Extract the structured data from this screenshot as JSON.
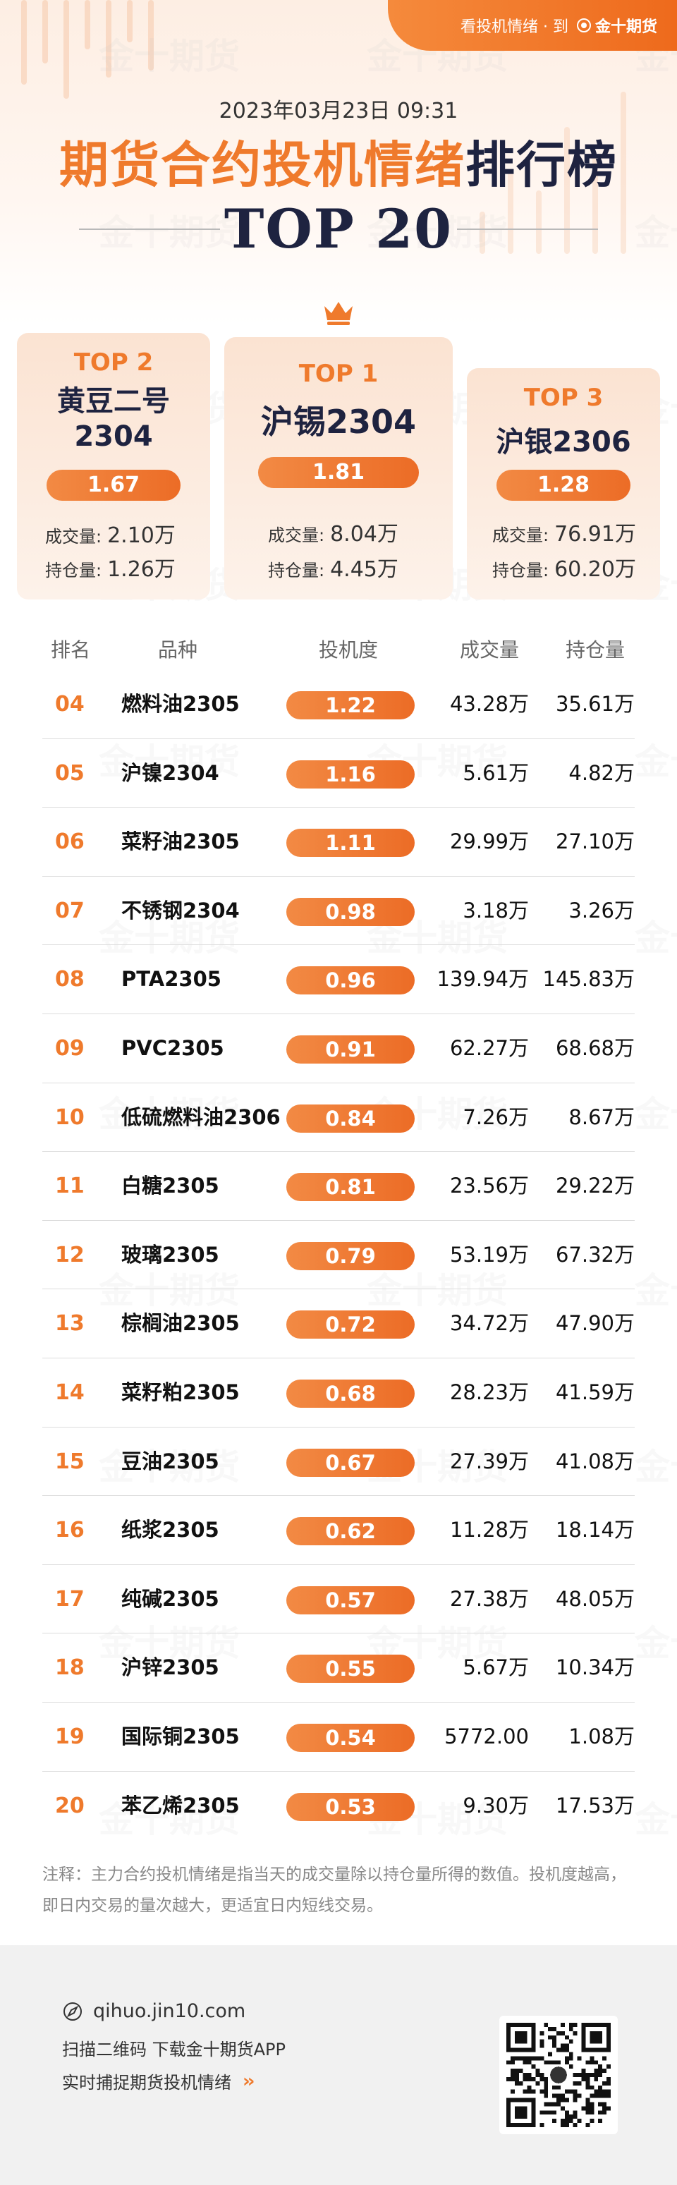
{
  "header": {
    "tag_text": "看投机情绪 · 到",
    "brand": "金十期货",
    "datetime": "2023年03月23日 09:31",
    "title_orange": "期货合约投机情绪",
    "title_dark": "排行榜",
    "subtitle": "TOP 20"
  },
  "podium": {
    "first": {
      "rank": "TOP 1",
      "name": "沪锡2304",
      "score": "1.81",
      "vol_label": "成交量:",
      "vol": "8.04万",
      "pos_label": "持仓量:",
      "pos": "4.45万"
    },
    "second": {
      "rank": "TOP 2",
      "name_line1": "黄豆二号",
      "name_line2": "2304",
      "score": "1.67",
      "vol_label": "成交量:",
      "vol": "2.10万",
      "pos_label": "持仓量:",
      "pos": "1.26万"
    },
    "third": {
      "rank": "TOP 3",
      "name": "沪银2306",
      "score": "1.28",
      "vol_label": "成交量:",
      "vol": "76.91万",
      "pos_label": "持仓量:",
      "pos": "60.20万"
    }
  },
  "table": {
    "headers": {
      "rank": "排名",
      "name": "品种",
      "score": "投机度",
      "volume": "成交量",
      "position": "持仓量"
    },
    "rows": [
      {
        "rank": "04",
        "name": "燃料油2305",
        "score": "1.22",
        "volume": "43.28万",
        "position": "35.61万"
      },
      {
        "rank": "05",
        "name": "沪镍2304",
        "score": "1.16",
        "volume": "5.61万",
        "position": "4.82万"
      },
      {
        "rank": "06",
        "name": "菜籽油2305",
        "score": "1.11",
        "volume": "29.99万",
        "position": "27.10万"
      },
      {
        "rank": "07",
        "name": "不锈钢2304",
        "score": "0.98",
        "volume": "3.18万",
        "position": "3.26万"
      },
      {
        "rank": "08",
        "name": "PTA2305",
        "score": "0.96",
        "volume": "139.94万",
        "position": "145.83万"
      },
      {
        "rank": "09",
        "name": "PVC2305",
        "score": "0.91",
        "volume": "62.27万",
        "position": "68.68万"
      },
      {
        "rank": "10",
        "name": "低硫燃料油2306",
        "score": "0.84",
        "volume": "7.26万",
        "position": "8.67万"
      },
      {
        "rank": "11",
        "name": "白糖2305",
        "score": "0.81",
        "volume": "23.56万",
        "position": "29.22万"
      },
      {
        "rank": "12",
        "name": "玻璃2305",
        "score": "0.79",
        "volume": "53.19万",
        "position": "67.32万"
      },
      {
        "rank": "13",
        "name": "棕榈油2305",
        "score": "0.72",
        "volume": "34.72万",
        "position": "47.90万"
      },
      {
        "rank": "14",
        "name": "菜籽粕2305",
        "score": "0.68",
        "volume": "28.23万",
        "position": "41.59万"
      },
      {
        "rank": "15",
        "name": "豆油2305",
        "score": "0.67",
        "volume": "27.39万",
        "position": "41.08万"
      },
      {
        "rank": "16",
        "name": "纸浆2305",
        "score": "0.62",
        "volume": "11.28万",
        "position": "18.14万"
      },
      {
        "rank": "17",
        "name": "纯碱2305",
        "score": "0.57",
        "volume": "27.38万",
        "position": "48.05万"
      },
      {
        "rank": "18",
        "name": "沪锌2305",
        "score": "0.55",
        "volume": "5.67万",
        "position": "10.34万"
      },
      {
        "rank": "19",
        "name": "国际铜2305",
        "score": "0.54",
        "volume": "5772.00",
        "position": "1.08万"
      },
      {
        "rank": "20",
        "name": "苯乙烯2305",
        "score": "0.53",
        "volume": "9.30万",
        "position": "17.53万"
      }
    ]
  },
  "note": "注释：主力合约投机情绪是指当天的成交量除以持仓量所得的数值。投机度越高，即日内交易的量次越大，更适宜日内短线交易。",
  "footer": {
    "site": "qihuo.jin10.com",
    "scan_text": "扫描二维码 下载金十期货APP",
    "tagline": "实时捕捉期货投机情绪",
    "arrows": "›› ",
    "icons": {
      "site": "compass-icon",
      "qr": "qr-code-icon"
    }
  },
  "watermark_text": "金十期货",
  "colors": {
    "accent": "#ef7a2c",
    "dark": "#1e2340"
  }
}
